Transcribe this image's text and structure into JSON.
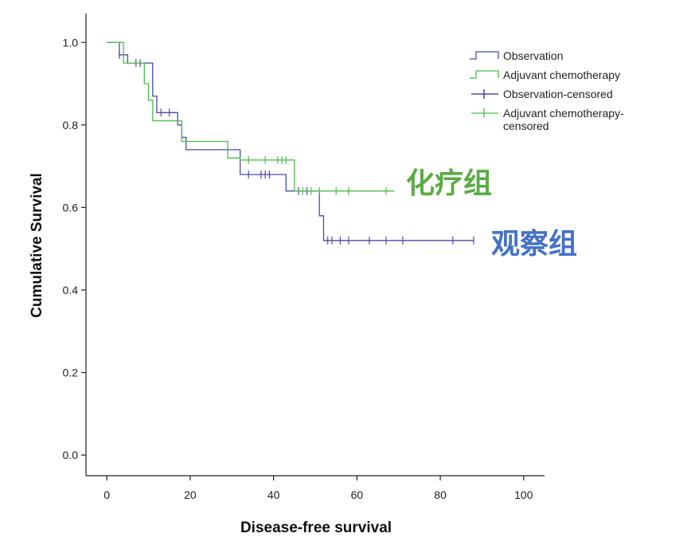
{
  "chart_data": {
    "type": "line",
    "xlabel": "Disease-free survival",
    "ylabel": "Cumulative Survival",
    "xlim": [
      -5,
      105
    ],
    "ylim": [
      -0.05,
      1.07
    ],
    "x_ticks": [
      0,
      20,
      40,
      60,
      80,
      100
    ],
    "x_tick_labels": [
      "0",
      "20",
      "40",
      "60",
      "80",
      "100"
    ],
    "y_ticks": [
      0.0,
      0.2,
      0.4,
      0.6,
      0.8,
      1.0
    ],
    "y_tick_labels": [
      "0.0",
      "0.2",
      "0.4",
      "0.6",
      "0.8",
      "1.0"
    ],
    "legend_position": "top-right",
    "legend": [
      {
        "label": "Observation",
        "kind": "step",
        "color": "#4a4aa8"
      },
      {
        "label": "Adjuvant chemotherapy",
        "kind": "step",
        "color": "#4cbf4c"
      },
      {
        "label": "Observation-censored",
        "kind": "censor",
        "color": "#2b2b8f"
      },
      {
        "label": "Adjuvant chemotherapy-censored",
        "kind": "censor",
        "color": "#4cbf4c"
      }
    ],
    "series": [
      {
        "name": "Observation",
        "color": "#4a4aa8",
        "steps": [
          [
            0,
            1.0
          ],
          [
            3,
            0.97
          ],
          [
            5,
            0.95
          ],
          [
            11,
            0.87
          ],
          [
            12,
            0.83
          ],
          [
            17,
            0.8
          ],
          [
            18,
            0.77
          ],
          [
            19,
            0.74
          ],
          [
            29,
            0.74
          ],
          [
            32,
            0.68
          ],
          [
            40,
            0.68
          ],
          [
            43,
            0.64
          ],
          [
            51,
            0.58
          ],
          [
            52,
            0.52
          ],
          [
            88,
            0.52
          ]
        ],
        "censored": [
          [
            3,
            0.97
          ],
          [
            7,
            0.95
          ],
          [
            8,
            0.95
          ],
          [
            13,
            0.83
          ],
          [
            15,
            0.83
          ],
          [
            18,
            0.77
          ],
          [
            34,
            0.68
          ],
          [
            37,
            0.68
          ],
          [
            38,
            0.68
          ],
          [
            39,
            0.68
          ],
          [
            46,
            0.64
          ],
          [
            48,
            0.64
          ],
          [
            53,
            0.52
          ],
          [
            54,
            0.52
          ],
          [
            56,
            0.52
          ],
          [
            58,
            0.52
          ],
          [
            63,
            0.52
          ],
          [
            67,
            0.52
          ],
          [
            71,
            0.52
          ],
          [
            83,
            0.52
          ],
          [
            88,
            0.52
          ]
        ]
      },
      {
        "name": "Adjuvant chemotherapy",
        "color": "#4cbf4c",
        "steps": [
          [
            0,
            1.0
          ],
          [
            4,
            1.0
          ],
          [
            4,
            0.95
          ],
          [
            9,
            0.9
          ],
          [
            10,
            0.86
          ],
          [
            11,
            0.81
          ],
          [
            17,
            0.81
          ],
          [
            18,
            0.76
          ],
          [
            29,
            0.76
          ],
          [
            29,
            0.72
          ],
          [
            31,
            0.72
          ],
          [
            32,
            0.715
          ],
          [
            45,
            0.715
          ],
          [
            45,
            0.64
          ],
          [
            69,
            0.64
          ]
        ],
        "censored": [
          [
            34,
            0.715
          ],
          [
            38,
            0.715
          ],
          [
            41,
            0.715
          ],
          [
            42,
            0.715
          ],
          [
            43,
            0.715
          ],
          [
            47,
            0.64
          ],
          [
            49,
            0.64
          ],
          [
            51,
            0.64
          ],
          [
            55,
            0.64
          ],
          [
            58,
            0.64
          ],
          [
            67,
            0.64
          ]
        ]
      }
    ],
    "annotations": [
      {
        "text": "化疗组",
        "color": "#5aac44"
      },
      {
        "text": "观察组",
        "color": "#4472c4"
      }
    ]
  }
}
